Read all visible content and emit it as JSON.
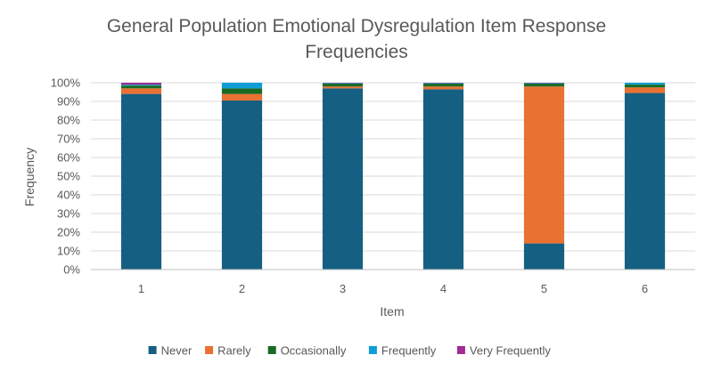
{
  "chart_data": {
    "type": "bar",
    "stacked": true,
    "percent_stacked": true,
    "title_lines": [
      "General Population Emotional Dysregulation Item Response",
      "Frequencies"
    ],
    "xlabel": "Item",
    "ylabel": "Frequency",
    "categories": [
      "1",
      "2",
      "3",
      "4",
      "5",
      "6"
    ],
    "ylim": [
      0,
      100
    ],
    "yticks": [
      "0%",
      "10%",
      "20%",
      "30%",
      "40%",
      "50%",
      "60%",
      "70%",
      "80%",
      "90%",
      "100%"
    ],
    "grid": true,
    "legend_position": "bottom",
    "series": [
      {
        "name": "Never",
        "color": "#156082",
        "values": [
          94,
          90.5,
          97,
          96.5,
          14,
          94.5
        ]
      },
      {
        "name": "Rarely",
        "color": "#E97132",
        "values": [
          3,
          3.5,
          1,
          1.5,
          84,
          3
        ]
      },
      {
        "name": "Occasionally",
        "color": "#196B24",
        "values": [
          1.5,
          3,
          1.5,
          1.5,
          1.5,
          1.5
        ]
      },
      {
        "name": "Frequently",
        "color": "#0F9ED5",
        "values": [
          0.5,
          3,
          0.3,
          0.3,
          0.3,
          1
        ]
      },
      {
        "name": "Very Frequently",
        "color": "#A02B93",
        "values": [
          1,
          0,
          0.2,
          0.2,
          0.2,
          0
        ]
      }
    ]
  }
}
